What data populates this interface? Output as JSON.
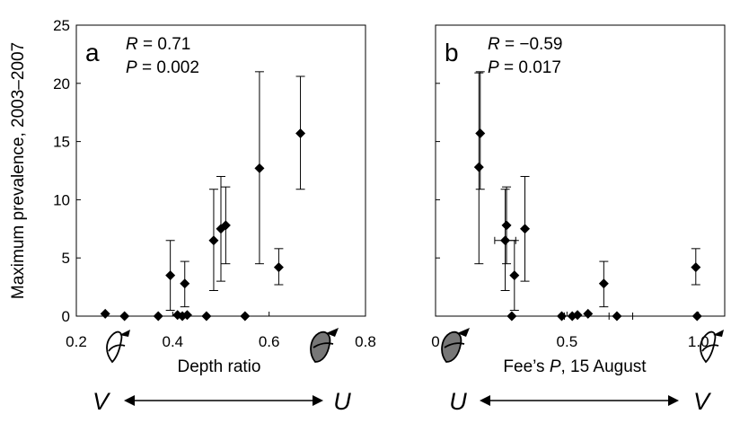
{
  "figure": {
    "ylabel": "Maximum prevalence, 2003–2007",
    "bottom_labels": {
      "left_v": "V",
      "left_u": "U",
      "right_u": "U",
      "right_v": "V"
    }
  },
  "chart_data": [
    {
      "type": "scatter",
      "panel": "a",
      "title": "",
      "xlabel": "Depth ratio",
      "ylabel": "Maximum prevalence, 2003–2007",
      "xlim": [
        0.2,
        0.8
      ],
      "ylim": [
        0,
        25
      ],
      "xticks": [
        0.2,
        0.4,
        0.6,
        0.8
      ],
      "xtick_labels": [
        "0.2",
        "0.4",
        "0.6",
        "0.8"
      ],
      "yticks": [
        0,
        5,
        10,
        15,
        20,
        25
      ],
      "ytick_labels": [
        "0",
        "5",
        "10",
        "15",
        "20",
        "25"
      ],
      "grid": false,
      "stats": {
        "r": "0.71",
        "p": "0.002"
      },
      "points": [
        {
          "x": 0.26,
          "y": 0.2
        },
        {
          "x": 0.3,
          "y": 0.0
        },
        {
          "x": 0.37,
          "y": 0.0
        },
        {
          "x": 0.395,
          "y": 3.5,
          "err_low": 0.5,
          "err_high": 6.5
        },
        {
          "x": 0.41,
          "y": 0.1
        },
        {
          "x": 0.42,
          "y": 0.0
        },
        {
          "x": 0.425,
          "y": 2.8,
          "err_low": 0.8,
          "err_high": 4.7
        },
        {
          "x": 0.43,
          "y": 0.1
        },
        {
          "x": 0.47,
          "y": 0.0
        },
        {
          "x": 0.485,
          "y": 6.5,
          "err_low": 2.2,
          "err_high": 10.9
        },
        {
          "x": 0.5,
          "y": 7.5,
          "err_low": 3.0,
          "err_high": 12.0
        },
        {
          "x": 0.51,
          "y": 7.8,
          "err_low": 4.5,
          "err_high": 11.1
        },
        {
          "x": 0.55,
          "y": 0.0
        },
        {
          "x": 0.58,
          "y": 12.7,
          "err_low": 4.5,
          "err_high": 21.0
        },
        {
          "x": 0.62,
          "y": 4.2,
          "err_low": 2.7,
          "err_high": 5.8
        },
        {
          "x": 0.665,
          "y": 15.7,
          "err_low": 10.9,
          "err_high": 20.6
        }
      ]
    },
    {
      "type": "scatter",
      "panel": "b",
      "title": "",
      "xlabel": "Fee’s P, 15 August",
      "ylabel": "Maximum prevalence, 2003–2007",
      "xlim": [
        0,
        1.1
      ],
      "ylim": [
        0,
        25
      ],
      "xticks": [
        0,
        0.5,
        1.0
      ],
      "xtick_labels": [
        "0",
        "0.5",
        "1.0"
      ],
      "yticks": [
        0,
        5,
        10,
        15,
        20,
        25
      ],
      "grid": false,
      "stats": {
        "r": "−0.59",
        "p": "0.017"
      },
      "points": [
        {
          "x": 0.17,
          "y": 15.7,
          "err_low": 10.9,
          "err_high": 21.0
        },
        {
          "x": 0.165,
          "y": 12.8,
          "err_low": 4.5,
          "err_high": 20.9
        },
        {
          "x": 0.27,
          "y": 7.8,
          "err_low": 4.5,
          "err_high": 11.1
        },
        {
          "x": 0.265,
          "y": 6.5,
          "err_low": 2.2,
          "err_high": 10.9,
          "xerr": 0.04
        },
        {
          "x": 0.34,
          "y": 7.5,
          "err_low": 3.0,
          "err_high": 12.0
        },
        {
          "x": 0.3,
          "y": 3.5,
          "err_low": 0.5,
          "err_high": 6.5
        },
        {
          "x": 0.29,
          "y": 0.0
        },
        {
          "x": 0.48,
          "y": 0.0
        },
        {
          "x": 0.52,
          "y": 0.0
        },
        {
          "x": 0.54,
          "y": 0.1
        },
        {
          "x": 0.58,
          "y": 0.2
        },
        {
          "x": 0.64,
          "y": 2.8,
          "err_low": 0.8,
          "err_high": 4.7
        },
        {
          "x": 0.69,
          "y": 0.0
        },
        {
          "x": 0.99,
          "y": 4.2,
          "err_low": 2.7,
          "err_high": 5.8
        },
        {
          "x": 0.995,
          "y": 0.0
        }
      ],
      "horizontal_error_bars": [
        {
          "x_from": 0.49,
          "x_to": 0.54,
          "y": 0.0
        },
        {
          "x_from": 0.66,
          "x_to": 0.75,
          "y": 0.0
        }
      ]
    }
  ]
}
